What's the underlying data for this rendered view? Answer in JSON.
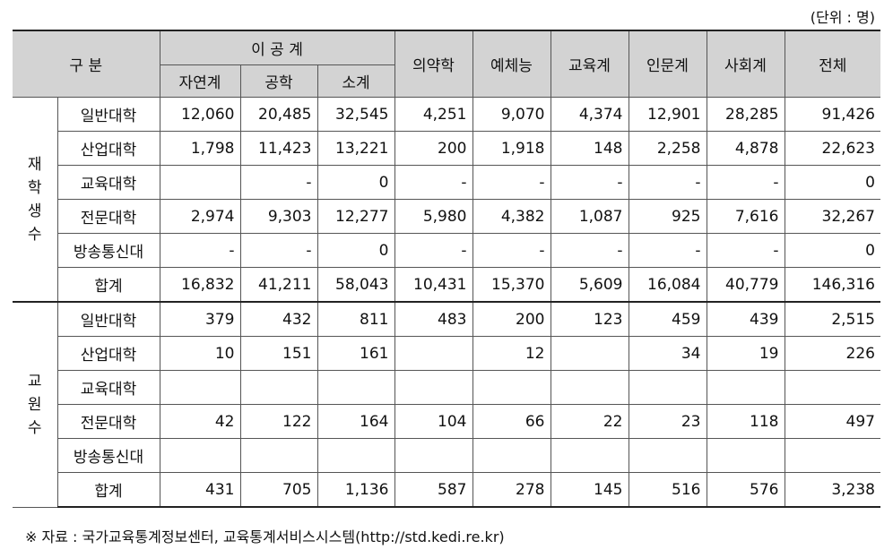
{
  "unit_note": "(단위 : 명)",
  "header": {
    "category": "구  분",
    "science_group": "이 공 계",
    "science_sub": [
      "자연계",
      "공학",
      "소계"
    ],
    "others": [
      "의약학",
      "예체능",
      "교육계",
      "인문계",
      "사회계",
      "전체"
    ]
  },
  "sections": [
    {
      "label": "재학생수",
      "rows": [
        {
          "name": "일반대학",
          "values": [
            "12,060",
            "20,485",
            "32,545",
            "4,251",
            "9,070",
            "4,374",
            "12,901",
            "28,285",
            "91,426"
          ]
        },
        {
          "name": "산업대학",
          "values": [
            "1,798",
            "11,423",
            "13,221",
            "200",
            "1,918",
            "148",
            "2,258",
            "4,878",
            "22,623"
          ]
        },
        {
          "name": "교육대학",
          "values": [
            "",
            "-",
            "0",
            "-",
            "-",
            "-",
            "-",
            "-",
            "0"
          ]
        },
        {
          "name": "전문대학",
          "values": [
            "2,974",
            "9,303",
            "12,277",
            "5,980",
            "4,382",
            "1,087",
            "925",
            "7,616",
            "32,267"
          ]
        },
        {
          "name": "방송통신대",
          "values": [
            "-",
            "-",
            "0",
            "-",
            "-",
            "-",
            "-",
            "-",
            "0"
          ]
        },
        {
          "name": "합계",
          "values": [
            "16,832",
            "41,211",
            "58,043",
            "10,431",
            "15,370",
            "5,609",
            "16,084",
            "40,779",
            "146,316"
          ]
        }
      ]
    },
    {
      "label": "교원수",
      "rows": [
        {
          "name": "일반대학",
          "values": [
            "379",
            "432",
            "811",
            "483",
            "200",
            "123",
            "459",
            "439",
            "2,515"
          ]
        },
        {
          "name": "산업대학",
          "values": [
            "10",
            "151",
            "161",
            "",
            "12",
            "",
            "34",
            "19",
            "226"
          ]
        },
        {
          "name": "교육대학",
          "values": [
            "",
            "",
            "",
            "",
            "",
            "",
            "",
            "",
            ""
          ]
        },
        {
          "name": "전문대학",
          "values": [
            "42",
            "122",
            "164",
            "104",
            "66",
            "22",
            "23",
            "118",
            "497"
          ]
        },
        {
          "name": "방송통신대",
          "values": [
            "",
            "",
            "",
            "",
            "",
            "",
            "",
            "",
            ""
          ]
        },
        {
          "name": "합계",
          "values": [
            "431",
            "705",
            "1,136",
            "587",
            "278",
            "145",
            "516",
            "576",
            "3,238"
          ]
        }
      ]
    }
  ],
  "source_note": "※  자료 : 국가교육통계정보센터, 교육통계서비스시스템(http://std.kedi.re.kr)"
}
